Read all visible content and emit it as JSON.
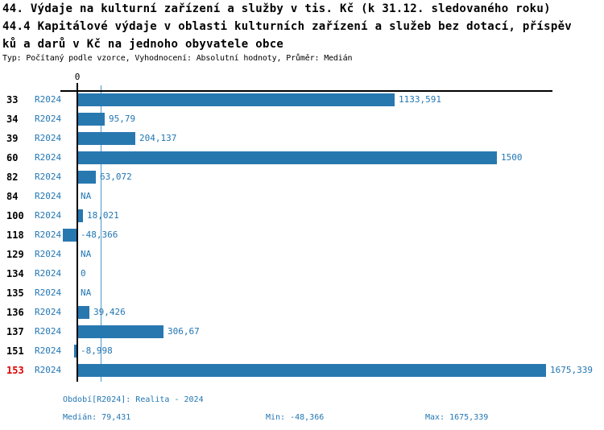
{
  "header": {
    "title_line1": "44. Výdaje na kulturní zařízení a služby v tis. Kč (k 31.12. sledovaného roku)",
    "title_line2": "44.4 Kapitálové výdaje v oblasti kulturních zařízení a služeb bez dotací, příspěv",
    "title_line3": "ků a darů v Kč na jednoho obyvatele obce",
    "meta": "Typ: Počítaný podle vzorce, Vyhodnocení: Absolutní hodnoty, Průměr: Medián"
  },
  "chart_data": {
    "type": "bar",
    "orientation": "horizontal",
    "title": "44.4 Kapitálové výdaje v oblasti kulturních zařízení a služeb bez dotací, příspěvků a darů v Kč na jednoho obyvatele obce",
    "xlabel": "",
    "ylabel": "",
    "zero_label": "0",
    "xlim": [
      -48.366,
      1675.339
    ],
    "median_value": 79.431,
    "grid": false,
    "legend": "none",
    "categories": [
      "33",
      "34",
      "39",
      "60",
      "82",
      "84",
      "100",
      "118",
      "129",
      "134",
      "135",
      "136",
      "137",
      "151",
      "153"
    ],
    "rows": [
      {
        "id": "33",
        "period": "R2024",
        "value": 1133.591,
        "label": "1133,591",
        "highlight": false
      },
      {
        "id": "34",
        "period": "R2024",
        "value": 95.79,
        "label": "95,79",
        "highlight": false
      },
      {
        "id": "39",
        "period": "R2024",
        "value": 204.137,
        "label": "204,137",
        "highlight": false
      },
      {
        "id": "60",
        "period": "R2024",
        "value": 1500,
        "label": "1500",
        "highlight": false
      },
      {
        "id": "82",
        "period": "R2024",
        "value": 63.072,
        "label": "63,072",
        "highlight": false
      },
      {
        "id": "84",
        "period": "R2024",
        "value": null,
        "label": "NA",
        "highlight": false
      },
      {
        "id": "100",
        "period": "R2024",
        "value": 18.021,
        "label": "18,021",
        "highlight": false
      },
      {
        "id": "118",
        "period": "R2024",
        "value": -48.366,
        "label": "-48,366",
        "highlight": false
      },
      {
        "id": "129",
        "period": "R2024",
        "value": null,
        "label": "NA",
        "highlight": false
      },
      {
        "id": "134",
        "period": "R2024",
        "value": 0,
        "label": "0",
        "highlight": false
      },
      {
        "id": "135",
        "period": "R2024",
        "value": null,
        "label": "NA",
        "highlight": false
      },
      {
        "id": "136",
        "period": "R2024",
        "value": 39.426,
        "label": "39,426",
        "highlight": false
      },
      {
        "id": "137",
        "period": "R2024",
        "value": 306.67,
        "label": "306,67",
        "highlight": false
      },
      {
        "id": "151",
        "period": "R2024",
        "value": -8.998,
        "label": "-8,998",
        "highlight": false
      },
      {
        "id": "153",
        "period": "R2024",
        "value": 1675.339,
        "label": "1675,339",
        "highlight": true
      }
    ]
  },
  "footer": {
    "period_info": "Období[R2024]: Realita - 2024",
    "median": "Medián: 79,431",
    "min": "Min: -48,366",
    "max": "Max: 1675,339"
  },
  "colors": {
    "bar": "#2878b0",
    "text_blue": "#2276b4",
    "median_line": "#4d97cc",
    "highlight_red": "#dd0000",
    "axis_black": "#000000"
  }
}
